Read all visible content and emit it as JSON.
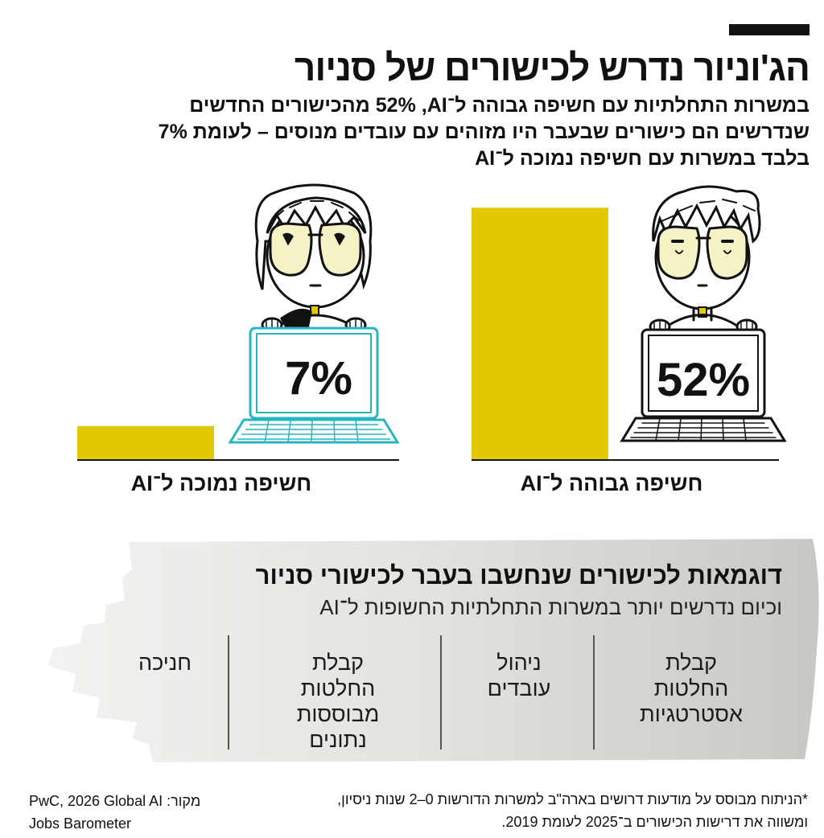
{
  "header": {
    "title": "הג'וניור נדרש לכישורים של סניור",
    "subtitle": "במשרות התחלתיות עם חשיפה גבוהה ל־AI, ‏52% מהכישורים החדשים שנדרשים הם כישורים שבעבר היו מזוהים עם עובדים מנוסים – לעומת 7% בלבד במשרות עם חשיפה נמוכה ל־AI"
  },
  "chart_data": {
    "type": "bar",
    "categories": [
      "חשיפה גבוהה ל־AI",
      "חשיפה נמוכה ל־AI"
    ],
    "values": [
      52,
      7
    ],
    "value_labels": [
      "52%",
      "7%"
    ],
    "unit": "%",
    "ylim": [
      0,
      60
    ],
    "grid": false,
    "colors": {
      "bar": "#e2c902",
      "high_laptop": "#111111",
      "low_laptop": "#29b5c0",
      "face": "#f5f3c6"
    }
  },
  "examples": {
    "title": "דוגמאות לכישורים שנחשבו בעבר לכישורי סניור",
    "subtitle": "וכיום נדרשים יותר במשרות התחלתיות החשופות ל־AI",
    "items": [
      "קבלת\nהחלטות\nאסטרטגיות",
      "ניהול\nעובדים",
      "קבלת\nהחלטות\nמבוססות\nנתונים",
      "חניכה"
    ]
  },
  "footer": {
    "note": "*הניתוח מבוסס על מודעות דרושים בארה\"ב למשרות הדורשות 0–2 שנות ניסיון, ומשווה את דרישות הכישורים ב־2025 לעומת 2019.",
    "source_label": "מקור:",
    "source_text": "PwC, 2026 Global AI",
    "source_text2": "Jobs Barometer"
  }
}
